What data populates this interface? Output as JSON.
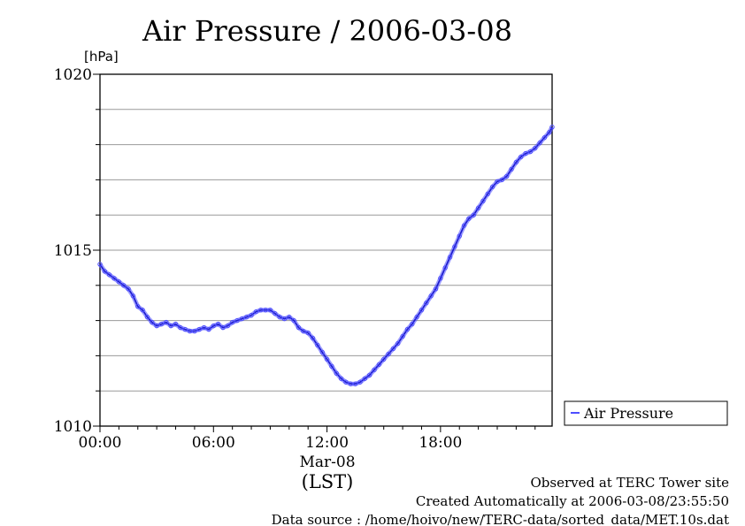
{
  "chart_data": {
    "type": "line",
    "title": "Air Pressure / 2006-03-08",
    "ylabel": "[hPa]",
    "xlabel_line1": "Mar-08",
    "xlabel_line2": "(LST)",
    "ylim": [
      1010,
      1020
    ],
    "xlim": [
      0,
      23.9
    ],
    "y_ticks": [
      "1010",
      "1015",
      "1020"
    ],
    "x_ticks": [
      "00:00",
      "06:00",
      "12:00",
      "18:00"
    ],
    "y_tick_values": [
      1010,
      1015,
      1020
    ],
    "x_tick_values": [
      0,
      6,
      12,
      18
    ],
    "grid": true,
    "legend_position": "right",
    "series": [
      {
        "name": "Air Pressure",
        "color": "#4d4dff",
        "x": [
          0.0,
          0.25,
          0.5,
          0.75,
          1.0,
          1.25,
          1.5,
          1.75,
          2.0,
          2.25,
          2.5,
          2.75,
          3.0,
          3.25,
          3.5,
          3.75,
          4.0,
          4.25,
          4.5,
          4.75,
          5.0,
          5.25,
          5.5,
          5.75,
          6.0,
          6.25,
          6.5,
          6.75,
          7.0,
          7.25,
          7.5,
          7.75,
          8.0,
          8.25,
          8.5,
          8.75,
          9.0,
          9.25,
          9.5,
          9.75,
          10.0,
          10.25,
          10.5,
          10.75,
          11.0,
          11.25,
          11.5,
          11.75,
          12.0,
          12.25,
          12.5,
          12.75,
          13.0,
          13.25,
          13.5,
          13.75,
          14.0,
          14.25,
          14.5,
          14.75,
          15.0,
          15.25,
          15.5,
          15.75,
          16.0,
          16.25,
          16.5,
          16.75,
          17.0,
          17.25,
          17.5,
          17.75,
          18.0,
          18.25,
          18.5,
          18.75,
          19.0,
          19.25,
          19.5,
          19.75,
          20.0,
          20.25,
          20.5,
          20.75,
          21.0,
          21.25,
          21.5,
          21.75,
          22.0,
          22.25,
          22.5,
          22.75,
          23.0,
          23.25,
          23.5,
          23.75,
          23.9
        ],
        "values": [
          1014.6,
          1014.4,
          1014.3,
          1014.2,
          1014.1,
          1014.0,
          1013.9,
          1013.7,
          1013.4,
          1013.3,
          1013.1,
          1012.95,
          1012.85,
          1012.9,
          1012.95,
          1012.85,
          1012.9,
          1012.8,
          1012.75,
          1012.7,
          1012.7,
          1012.75,
          1012.8,
          1012.75,
          1012.85,
          1012.9,
          1012.8,
          1012.85,
          1012.95,
          1013.0,
          1013.05,
          1013.1,
          1013.15,
          1013.25,
          1013.3,
          1013.3,
          1013.3,
          1013.2,
          1013.1,
          1013.05,
          1013.1,
          1013.0,
          1012.8,
          1012.7,
          1012.65,
          1012.5,
          1012.3,
          1012.1,
          1011.9,
          1011.7,
          1011.5,
          1011.35,
          1011.25,
          1011.2,
          1011.2,
          1011.25,
          1011.35,
          1011.45,
          1011.6,
          1011.75,
          1011.9,
          1012.05,
          1012.2,
          1012.35,
          1012.55,
          1012.75,
          1012.9,
          1013.1,
          1013.3,
          1013.5,
          1013.7,
          1013.9,
          1014.2,
          1014.5,
          1014.8,
          1015.1,
          1015.4,
          1015.7,
          1015.9,
          1016.0,
          1016.2,
          1016.4,
          1016.6,
          1016.8,
          1016.95,
          1017.0,
          1017.1,
          1017.3,
          1017.5,
          1017.65,
          1017.75,
          1017.8,
          1017.9,
          1018.05,
          1018.2,
          1018.35,
          1018.5
        ]
      }
    ]
  },
  "footer": {
    "site": "Observed at TERC Tower site",
    "created": "Created Automatically at 2006-03-08/23:55:50",
    "source": "Data source : /home/hoivo/new/TERC-data/sorted_data/MET.10s.dat"
  }
}
